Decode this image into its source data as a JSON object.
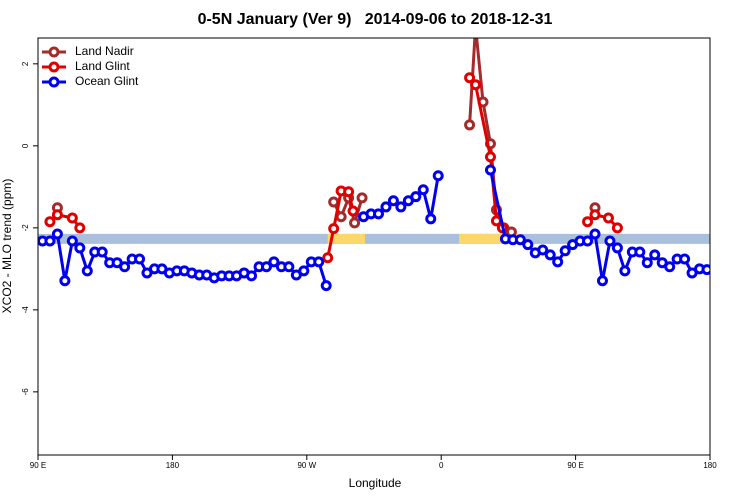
{
  "chart_data": {
    "type": "line",
    "title": "0-5N January (Ver 9)   2014-09-06 to 2018-12-31",
    "xlabel": "Longitude",
    "ylabel": "XCO2 - MLO trend (ppm)",
    "xlim": [
      90,
      540
    ],
    "ylim": [
      -7.54,
      2.63
    ],
    "xticks": [
      {
        "value": 90,
        "label": "90 E"
      },
      180,
      {
        "value": 270,
        "label": "90 W"
      },
      {
        "value": 360,
        "label": "0"
      },
      {
        "value": 450,
        "label": "90 E"
      },
      {
        "value": 540,
        "label": "180"
      }
    ],
    "yticks": [
      2,
      0,
      -2,
      -4,
      -6
    ],
    "legend": "top-left",
    "band": {
      "y": -2.27,
      "color": "#a9bfdc",
      "highlight_color": "#fcd86c",
      "highlights": [
        [
          284,
          309
        ],
        [
          372,
          413
        ]
      ]
    },
    "series": [
      {
        "name": "Land Nadir",
        "color": "#a52a2a",
        "x": [
          103,
          null,
          288,
          293,
          298,
          302,
          307,
          null,
          379,
          383,
          388,
          393,
          397,
          402,
          407,
          null,
          463
        ],
        "values": [
          -1.51,
          null,
          -1.37,
          -1.73,
          -1.27,
          -1.88,
          -1.27,
          null,
          0.51,
          2.9,
          1.07,
          0.05,
          -1.56,
          -2.0,
          -2.1,
          null,
          -1.51
        ]
      },
      {
        "name": "Land Glint",
        "color": "#e00000",
        "x": [
          98,
          103,
          113,
          118,
          null,
          284,
          288,
          293,
          298,
          301,
          null,
          379,
          383,
          393,
          397,
          401,
          null,
          458,
          463,
          472,
          478
        ],
        "values": [
          -1.85,
          -1.68,
          -1.76,
          -2.0,
          null,
          -2.73,
          -2.02,
          -1.1,
          -1.12,
          -1.59,
          null,
          1.66,
          1.49,
          -0.27,
          -1.83,
          -2.0,
          null,
          -1.85,
          -1.68,
          -1.76,
          -2.0
        ]
      },
      {
        "name": "Ocean Glint",
        "color": "#0000ee",
        "x": [
          93,
          98,
          103,
          108,
          113,
          118,
          123,
          128,
          133,
          138,
          143,
          148,
          153,
          158,
          163,
          168,
          173,
          178,
          183,
          188,
          193,
          198,
          203,
          208,
          213,
          218,
          223,
          228,
          233,
          238,
          243,
          248,
          253,
          258,
          263,
          268,
          273,
          278,
          283,
          null,
          308,
          313,
          318,
          323,
          328,
          333,
          338,
          343,
          348,
          353,
          358,
          null,
          393,
          403,
          408,
          413,
          418,
          423,
          428,
          433,
          438,
          443,
          448,
          453,
          458,
          463,
          468,
          473,
          478,
          483,
          488,
          493,
          498,
          503,
          508,
          513,
          518,
          523,
          528,
          533,
          538
        ],
        "values": [
          -2.32,
          -2.32,
          -2.15,
          -3.29,
          -2.32,
          -2.49,
          -3.05,
          -2.59,
          -2.59,
          -2.85,
          -2.85,
          -2.95,
          -2.76,
          -2.76,
          -3.1,
          -3.0,
          -3.0,
          -3.1,
          -3.05,
          -3.05,
          -3.1,
          -3.15,
          -3.15,
          -3.22,
          -3.17,
          -3.17,
          -3.17,
          -3.1,
          -3.17,
          -2.95,
          -2.95,
          -2.83,
          -2.95,
          -2.95,
          -3.15,
          -3.05,
          -2.83,
          -2.83,
          -3.41,
          null,
          -1.73,
          -1.66,
          -1.66,
          -1.49,
          -1.34,
          -1.49,
          -1.34,
          -1.24,
          -1.07,
          -1.78,
          -0.73,
          null,
          -0.59,
          -2.27,
          -2.29,
          -2.29,
          -2.41,
          -2.61,
          -2.54,
          -2.66,
          -2.83,
          -2.56,
          -2.41,
          -2.32,
          -2.32,
          -2.15,
          -3.29,
          -2.32,
          -2.49,
          -3.05,
          -2.59,
          -2.59,
          -2.85,
          -2.66,
          -2.85,
          -2.95,
          -2.76,
          -2.76,
          -3.1,
          -3.0,
          -3.02
        ]
      }
    ]
  }
}
